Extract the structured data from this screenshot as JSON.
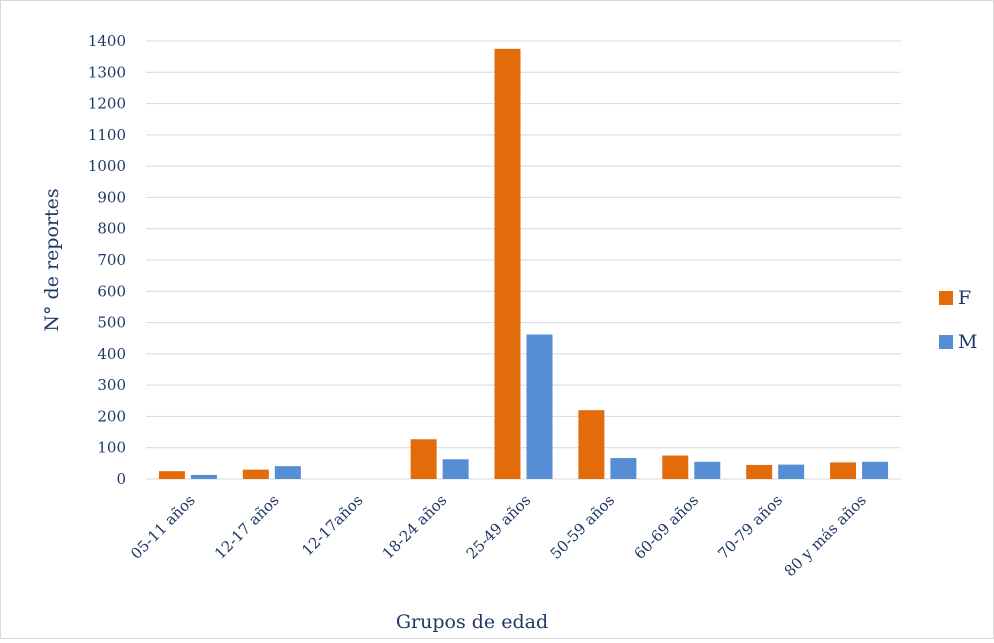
{
  "chart_data": {
    "type": "bar",
    "title": "",
    "xlabel": "Grupos de edad",
    "ylabel": "N° de reportes",
    "ylim": [
      0,
      1400
    ],
    "yticks": [
      0,
      100,
      200,
      300,
      400,
      500,
      600,
      700,
      800,
      900,
      1000,
      1100,
      1200,
      1300,
      1400
    ],
    "grid": true,
    "legend_position": "right",
    "categories": [
      "05-11 años",
      "12-17 años",
      "12-17años",
      "18-24 años",
      "25-49 años",
      "50-59 años",
      "60-69 años",
      "70-79 años",
      "80 y más años"
    ],
    "series": [
      {
        "name": "F",
        "color": "#e36c0a",
        "values": [
          25,
          30,
          0,
          127,
          1375,
          220,
          75,
          45,
          53
        ]
      },
      {
        "name": "M",
        "color": "#558ed5",
        "values": [
          13,
          41,
          0,
          63,
          462,
          67,
          55,
          46,
          55
        ]
      }
    ]
  }
}
